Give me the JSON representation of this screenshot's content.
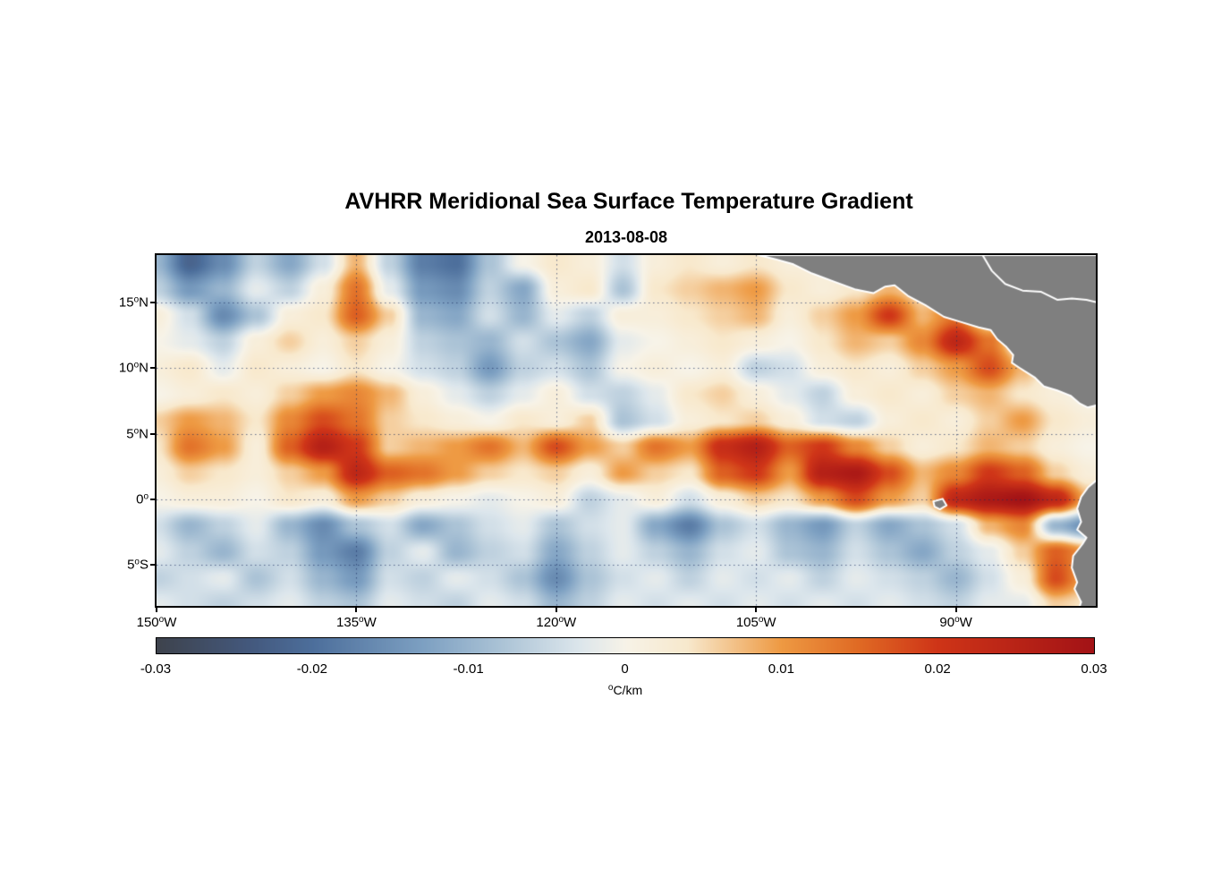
{
  "page": {
    "background": "#ffffff"
  },
  "chart_data": {
    "type": "heatmap",
    "title": "AVHRR Meridional Sea Surface Temperature Gradient",
    "subtitle": "2013-08-08",
    "xlabel": "",
    "ylabel": "",
    "legend_position": "none",
    "grid_on": true,
    "colorbar": {
      "min": -0.03,
      "max": 0.03,
      "ticks": [
        "-0.03",
        "-0.02",
        "-0.01",
        "0",
        "0.01",
        "0.02",
        "0.03"
      ],
      "unit_sup": "o",
      "unit_text": "C/km"
    },
    "colormap_stops": [
      [
        -0.03,
        "#3e434d"
      ],
      [
        -0.024,
        "#44597e"
      ],
      [
        -0.02,
        "#4d6f9c"
      ],
      [
        -0.013,
        "#7da0c2"
      ],
      [
        -0.008,
        "#abc3d6"
      ],
      [
        -0.003,
        "#dce6ec"
      ],
      [
        0.0,
        "#f7f3e8"
      ],
      [
        0.004,
        "#f8e9cd"
      ],
      [
        0.01,
        "#ee9a43"
      ],
      [
        0.015,
        "#e06a24"
      ],
      [
        0.02,
        "#cf3518"
      ],
      [
        0.03,
        "#a31316"
      ]
    ],
    "axes": {
      "lon_range": [
        -150,
        -79.5
      ],
      "lat_range": [
        18.6,
        -8.1
      ],
      "x_ticks": [
        {
          "lon": -150,
          "label": "150",
          "sup": "o",
          "suffix": "W"
        },
        {
          "lon": -135,
          "label": "135",
          "sup": "o",
          "suffix": "W"
        },
        {
          "lon": -120,
          "label": "120",
          "sup": "o",
          "suffix": "W"
        },
        {
          "lon": -105,
          "label": "105",
          "sup": "o",
          "suffix": "W"
        },
        {
          "lon": -90,
          "label": "90",
          "sup": "o",
          "suffix": "W"
        }
      ],
      "y_ticks": [
        {
          "lat": 15,
          "label": "15",
          "sup": "o",
          "suffix": "N"
        },
        {
          "lat": 10,
          "label": "10",
          "sup": "o",
          "suffix": "N"
        },
        {
          "lat": 5,
          "label": "5",
          "sup": "o",
          "suffix": "N"
        },
        {
          "lat": 0,
          "label": "0",
          "sup": "o",
          "suffix": ""
        },
        {
          "lat": -5,
          "label": "5",
          "sup": "o",
          "suffix": "S"
        }
      ],
      "gridline_lons": [
        -135,
        -120,
        -105,
        -90
      ],
      "gridline_lats": [
        15,
        10,
        5,
        0,
        -5
      ]
    },
    "grid": {
      "units": "degC_per_km",
      "value_scale": 0.001,
      "lon_start": -150,
      "lon_step": 2.5,
      "lat_start": 18,
      "lat_step": -2,
      "values": [
        [
          -10,
          -22,
          -16,
          -6,
          -12,
          -4,
          8,
          -6,
          -18,
          -20,
          -8,
          0,
          4,
          2,
          -4,
          2,
          4,
          2,
          4,
          2,
          2,
          0,
          0,
          0,
          0,
          0,
          0,
          0,
          0
        ],
        [
          -6,
          -14,
          -10,
          -2,
          -6,
          2,
          14,
          -2,
          -14,
          -16,
          -6,
          -12,
          2,
          4,
          -8,
          4,
          6,
          8,
          10,
          4,
          2,
          4,
          8,
          4,
          0,
          0,
          0,
          0,
          0
        ],
        [
          2,
          -4,
          -16,
          -8,
          2,
          4,
          16,
          6,
          -10,
          -12,
          -4,
          -10,
          -2,
          -6,
          2,
          2,
          4,
          6,
          8,
          2,
          6,
          10,
          20,
          8,
          14,
          0,
          0,
          0,
          0
        ],
        [
          0,
          -2,
          -6,
          2,
          6,
          2,
          6,
          2,
          -6,
          -8,
          -10,
          -4,
          -8,
          -12,
          -2,
          0,
          2,
          4,
          2,
          0,
          4,
          8,
          6,
          12,
          24,
          14,
          0,
          0,
          0
        ],
        [
          2,
          4,
          -2,
          4,
          2,
          0,
          4,
          0,
          -4,
          -6,
          -14,
          -6,
          -4,
          -8,
          0,
          2,
          0,
          2,
          -6,
          -4,
          2,
          4,
          2,
          6,
          10,
          18,
          8,
          0,
          0
        ],
        [
          0,
          2,
          4,
          2,
          6,
          10,
          12,
          8,
          2,
          -2,
          -6,
          -2,
          2,
          -4,
          -6,
          -2,
          4,
          6,
          2,
          -2,
          -6,
          2,
          4,
          2,
          6,
          8,
          4,
          2,
          0
        ],
        [
          6,
          10,
          8,
          4,
          12,
          18,
          14,
          6,
          4,
          2,
          0,
          4,
          2,
          6,
          -8,
          -4,
          2,
          4,
          6,
          2,
          -4,
          -6,
          2,
          4,
          2,
          6,
          10,
          4,
          2
        ],
        [
          4,
          14,
          10,
          2,
          16,
          26,
          20,
          6,
          8,
          10,
          14,
          8,
          18,
          10,
          6,
          14,
          10,
          22,
          26,
          16,
          20,
          12,
          6,
          2,
          4,
          8,
          6,
          2,
          0
        ],
        [
          2,
          6,
          4,
          2,
          6,
          10,
          24,
          16,
          14,
          10,
          6,
          4,
          6,
          2,
          10,
          6,
          4,
          16,
          20,
          10,
          26,
          28,
          18,
          8,
          12,
          20,
          16,
          6,
          2
        ],
        [
          0,
          2,
          2,
          0,
          4,
          2,
          10,
          6,
          2,
          0,
          -2,
          0,
          2,
          -6,
          -2,
          2,
          -4,
          2,
          6,
          4,
          10,
          18,
          10,
          6,
          24,
          28,
          30,
          24,
          8
        ],
        [
          -4,
          -10,
          -6,
          -2,
          -10,
          -16,
          -8,
          -4,
          -12,
          -8,
          -4,
          -2,
          -8,
          -4,
          -2,
          -12,
          -18,
          -8,
          -4,
          -10,
          -14,
          -6,
          -12,
          -8,
          -4,
          8,
          12,
          -10,
          -16
        ],
        [
          -2,
          -6,
          -10,
          -4,
          -6,
          -14,
          -18,
          -6,
          -2,
          -10,
          -6,
          -4,
          -12,
          -6,
          -2,
          -6,
          -10,
          -4,
          -2,
          -8,
          -10,
          -4,
          -8,
          -12,
          -6,
          -2,
          6,
          16,
          10
        ],
        [
          -6,
          -4,
          -2,
          -8,
          -4,
          -10,
          -14,
          -4,
          -6,
          -2,
          -4,
          -8,
          -16,
          -8,
          -4,
          -2,
          -6,
          -2,
          -4,
          -2,
          -6,
          -2,
          -4,
          -6,
          -10,
          -4,
          2,
          18,
          8
        ],
        [
          -2,
          -4,
          -6,
          -4,
          -2,
          -6,
          -8,
          -2,
          -4,
          -6,
          -2,
          -4,
          -10,
          -6,
          -2,
          -4,
          -2,
          -4,
          -2,
          -4,
          -2,
          -4,
          -2,
          -4,
          -6,
          -2,
          -2,
          6,
          4
        ]
      ]
    },
    "land": {
      "fill": "#7f7f7f",
      "outline": "#ffffff",
      "polygons": {
        "central_america": [
          [
            -104.8,
            18.6
          ],
          [
            -103.6,
            18.3
          ],
          [
            -102.2,
            17.9
          ],
          [
            -100.8,
            17.2
          ],
          [
            -99.2,
            16.6
          ],
          [
            -97.6,
            16.0
          ],
          [
            -96.2,
            15.7
          ],
          [
            -95.3,
            16.2
          ],
          [
            -94.6,
            16.3
          ],
          [
            -93.6,
            15.5
          ],
          [
            -92.3,
            14.8
          ],
          [
            -90.9,
            13.9
          ],
          [
            -89.6,
            13.5
          ],
          [
            -88.3,
            13.1
          ],
          [
            -87.4,
            12.9
          ],
          [
            -86.9,
            12.2
          ],
          [
            -86.2,
            11.6
          ],
          [
            -85.7,
            11.0
          ],
          [
            -85.8,
            10.4
          ],
          [
            -85.2,
            10.0
          ],
          [
            -84.9,
            9.8
          ],
          [
            -84.1,
            9.3
          ],
          [
            -83.4,
            8.6
          ],
          [
            -82.4,
            8.3
          ],
          [
            -81.4,
            7.9
          ],
          [
            -80.7,
            7.3
          ],
          [
            -80.1,
            7.0
          ],
          [
            -79.3,
            7.2
          ],
          [
            -79.3,
            18.6
          ]
        ],
        "south_america": [
          [
            -79.3,
            1.6
          ],
          [
            -80.1,
            0.9
          ],
          [
            -80.6,
            0.2
          ],
          [
            -80.9,
            -0.7
          ],
          [
            -80.6,
            -1.7
          ],
          [
            -80.9,
            -2.3
          ],
          [
            -80.2,
            -2.9
          ],
          [
            -80.5,
            -3.4
          ],
          [
            -81.2,
            -4.3
          ],
          [
            -81.3,
            -5.2
          ],
          [
            -80.9,
            -6.3
          ],
          [
            -81.1,
            -6.8
          ],
          [
            -80.6,
            -7.8
          ],
          [
            -80.8,
            -8.4
          ],
          [
            -79.3,
            -8.4
          ]
        ],
        "galapagos": [
          [
            -91.7,
            -0.15
          ],
          [
            -91.0,
            0.05
          ],
          [
            -90.7,
            -0.45
          ],
          [
            -91.2,
            -0.75
          ],
          [
            -91.6,
            -0.55
          ]
        ]
      },
      "coastline_caribbean": [
        [
          -88.0,
          18.6
        ],
        [
          -87.3,
          17.4
        ],
        [
          -86.3,
          16.4
        ],
        [
          -85.0,
          15.9
        ],
        [
          -83.6,
          15.8
        ],
        [
          -82.4,
          15.2
        ],
        [
          -81.3,
          15.3
        ],
        [
          -80.2,
          15.2
        ],
        [
          -79.4,
          15.0
        ]
      ]
    }
  }
}
